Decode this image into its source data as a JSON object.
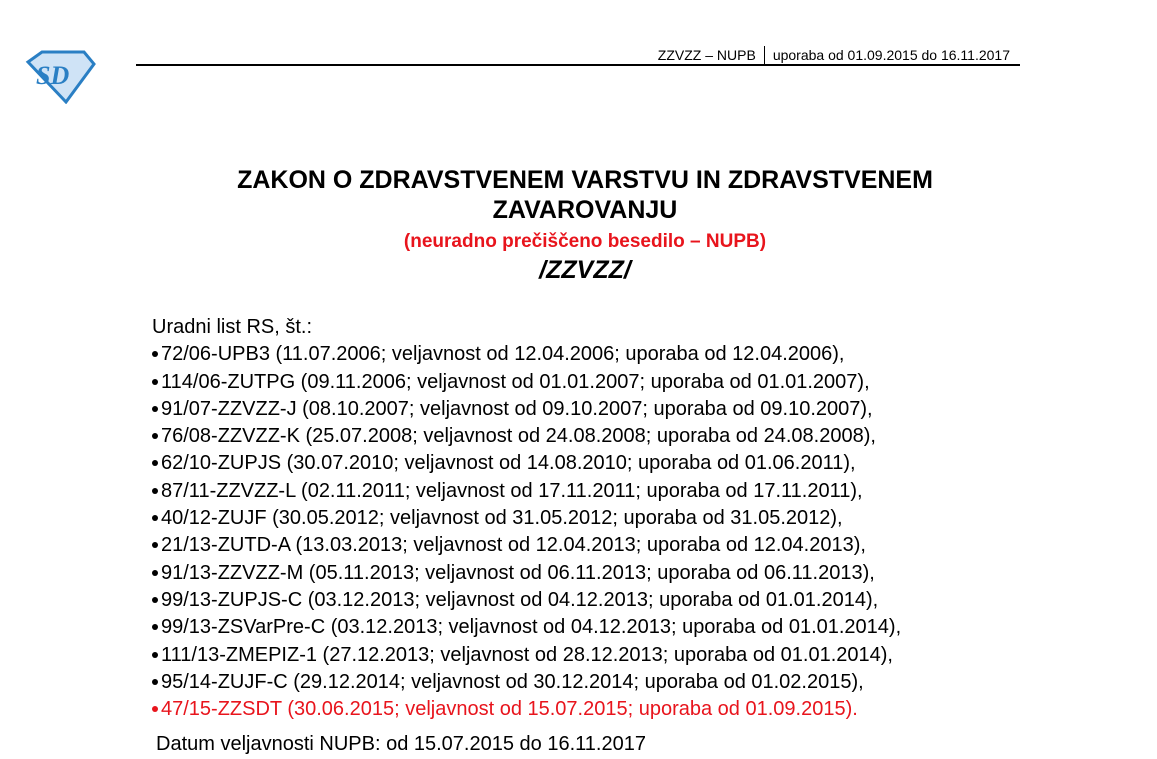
{
  "logo": {
    "text": "SD",
    "color": "#2a7fc4"
  },
  "header": {
    "left": "ZZVZZ – NUPB",
    "right": "uporaba od 01.09.2015 do 16.11.2017"
  },
  "title": {
    "line1": "ZAKON O ZDRAVSTVENEM VARSTVU IN ZDRAVSTVENEM",
    "line2": "ZAVAROVANJU",
    "subtitle": "(neuradno prečiščeno besedilo – NUPB)",
    "abbr": "/ZZVZZ/"
  },
  "gazette": {
    "label": "Uradni list RS, št.:",
    "items": [
      {
        "text": "72/06-UPB3 (11.07.2006; veljavnost od 12.04.2006; uporaba od 12.04.2006),",
        "highlight": false
      },
      {
        "text": "114/06-ZUTPG (09.11.2006; veljavnost od 01.01.2007; uporaba od 01.01.2007),",
        "highlight": false
      },
      {
        "text": "91/07-ZZVZZ-J (08.10.2007; veljavnost od 09.10.2007; uporaba od 09.10.2007),",
        "highlight": false
      },
      {
        "text": "76/08-ZZVZZ-K (25.07.2008; veljavnost od 24.08.2008; uporaba od 24.08.2008),",
        "highlight": false
      },
      {
        "text": "62/10-ZUPJS (30.07.2010; veljavnost od 14.08.2010; uporaba od 01.06.2011),",
        "highlight": false
      },
      {
        "text": "87/11-ZZVZZ-L (02.11.2011; veljavnost od 17.11.2011; uporaba od 17.11.2011),",
        "highlight": false
      },
      {
        "text": "40/12-ZUJF (30.05.2012; veljavnost od 31.05.2012; uporaba od 31.05.2012),",
        "highlight": false
      },
      {
        "text": "21/13-ZUTD-A (13.03.2013; veljavnost od 12.04.2013; uporaba od 12.04.2013),",
        "highlight": false
      },
      {
        "text": "91/13-ZZVZZ-M (05.11.2013; veljavnost od 06.11.2013; uporaba od 06.11.2013),",
        "highlight": false
      },
      {
        "text": "99/13-ZUPJS-C (03.12.2013; veljavnost od 04.12.2013; uporaba od 01.01.2014),",
        "highlight": false
      },
      {
        "text": "99/13-ZSVarPre-C (03.12.2013; veljavnost od 04.12.2013; uporaba od 01.01.2014),",
        "highlight": false
      },
      {
        "text": "111/13-ZMEPIZ-1 (27.12.2013; veljavnost od 28.12.2013; uporaba od 01.01.2014),",
        "highlight": false
      },
      {
        "text": "95/14-ZUJF-C (29.12.2014; veljavnost od 30.12.2014; uporaba od 01.02.2015),",
        "highlight": false
      },
      {
        "text": "47/15-ZZSDT (30.06.2015; veljavnost od 15.07.2015; uporaba od 01.09.2015).",
        "highlight": true
      }
    ],
    "validity": "Datum veljavnosti NUPB: od 15.07.2015 do 16.11.2017"
  },
  "colors": {
    "highlight": "#e8141c",
    "logo": "#2a7fc4"
  }
}
